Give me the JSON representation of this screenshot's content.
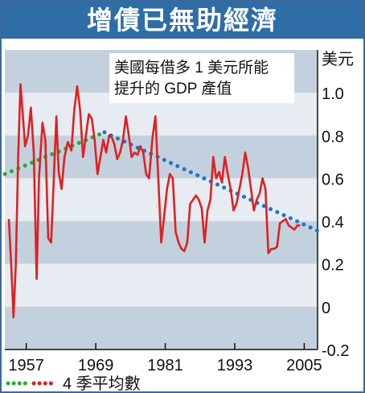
{
  "title": "增債已無助經濟",
  "chart_data": {
    "type": "line",
    "unit_label": "美元",
    "annotation": [
      "美國每借多 1 美元所能",
      "提升的 GDP 產值"
    ],
    "x_tick_labels": [
      "1957",
      "1969",
      "1981",
      "1993",
      "2005"
    ],
    "x_ticks": [
      1957,
      1969,
      1981,
      1993,
      2005
    ],
    "xlim": [
      1953.3,
      2007.3
    ],
    "y_tick_labels": [
      "1.0",
      "0.8",
      "0.6",
      "0.4",
      "0.2",
      "0",
      "-0.2"
    ],
    "y_ticks": [
      1.0,
      0.8,
      0.6,
      0.4,
      0.2,
      0.0,
      -0.2
    ],
    "ylim": [
      -0.2,
      1.2
    ],
    "legend_label": "4 季平均數",
    "colors": {
      "quarterly_line": "#e02020",
      "trend_early": "#2aa83a",
      "trend_late": "#1f77c8",
      "band_dark": "#c3d1de",
      "band_light": "#e6ecf2",
      "title_bg": "#2f6da7"
    },
    "series": [
      {
        "x": [
          1954.0,
          1954.4,
          1954.8,
          1955.2,
          1955.6,
          1956.0,
          1956.4,
          1956.8,
          1957.3,
          1957.8,
          1958.3,
          1958.8,
          1959.2,
          1959.8,
          1960.3,
          1960.8,
          1961.3,
          1961.7,
          1962.2,
          1962.6,
          1963.1,
          1963.6,
          1964.2,
          1964.8,
          1965.3,
          1965.8,
          1966.3,
          1966.8,
          1967.3,
          1967.8,
          1968.3,
          1968.8,
          1969.3,
          1969.8,
          1970.3,
          1970.8,
          1971.3,
          1971.8,
          1972.2,
          1972.7,
          1973.2,
          1973.7,
          1974.2,
          1974.7,
          1975.2,
          1975.7,
          1976.2,
          1976.7,
          1977.2,
          1977.7,
          1978.2,
          1978.8,
          1979.3,
          1979.8,
          1980.3,
          1980.8,
          1981.3,
          1981.8,
          1982.3,
          1982.8,
          1983.3,
          1983.8,
          1984.3,
          1984.8,
          1985.3,
          1985.8,
          1986.3,
          1986.8,
          1987.3,
          1987.8,
          1988.3,
          1988.8,
          1989.3,
          1989.8,
          1990.3,
          1990.8,
          1991.3,
          1991.8,
          1992.3,
          1992.8,
          1993.3,
          1993.8,
          1994.3,
          1994.8,
          1995.3,
          1995.8,
          1996.3,
          1996.8,
          1997.3,
          1997.8,
          1998.3,
          1998.8,
          1999.3,
          1999.8,
          2000.3,
          2000.8,
          2001.3,
          2001.8,
          2002.3,
          2002.8,
          2003.3,
          2003.8,
          2004.3
        ],
        "values": [
          0.41,
          0.2,
          -0.05,
          0.2,
          0.7,
          1.04,
          0.9,
          0.75,
          0.8,
          0.93,
          0.72,
          0.13,
          0.6,
          0.86,
          0.78,
          0.32,
          0.3,
          0.56,
          0.89,
          0.63,
          0.55,
          0.7,
          0.77,
          0.73,
          0.92,
          1.03,
          0.92,
          0.7,
          0.8,
          0.9,
          0.88,
          0.78,
          0.62,
          0.7,
          0.78,
          0.72,
          0.8,
          0.79,
          0.76,
          0.69,
          0.72,
          0.78,
          0.89,
          0.8,
          0.7,
          0.72,
          0.71,
          0.75,
          0.72,
          0.62,
          0.6,
          0.79,
          0.89,
          0.6,
          0.3,
          0.42,
          0.55,
          0.62,
          0.6,
          0.35,
          0.3,
          0.27,
          0.26,
          0.3,
          0.48,
          0.5,
          0.52,
          0.5,
          0.46,
          0.3,
          0.45,
          0.5,
          0.7,
          0.6,
          0.63,
          0.58,
          0.7,
          0.62,
          0.55,
          0.45,
          0.48,
          0.55,
          0.62,
          0.72,
          0.65,
          0.55,
          0.45,
          0.5,
          0.53,
          0.6,
          0.55,
          0.25,
          0.27,
          0.27,
          0.28,
          0.39,
          0.4,
          0.41,
          0.38,
          0.37,
          0.36,
          0.38,
          0.38
        ]
      }
    ],
    "trend": {
      "x": [
        1953.3,
        1970.5,
        2007.3
      ],
      "values": [
        0.62,
        0.815,
        0.355
      ],
      "change_at": 1970.5
    }
  }
}
